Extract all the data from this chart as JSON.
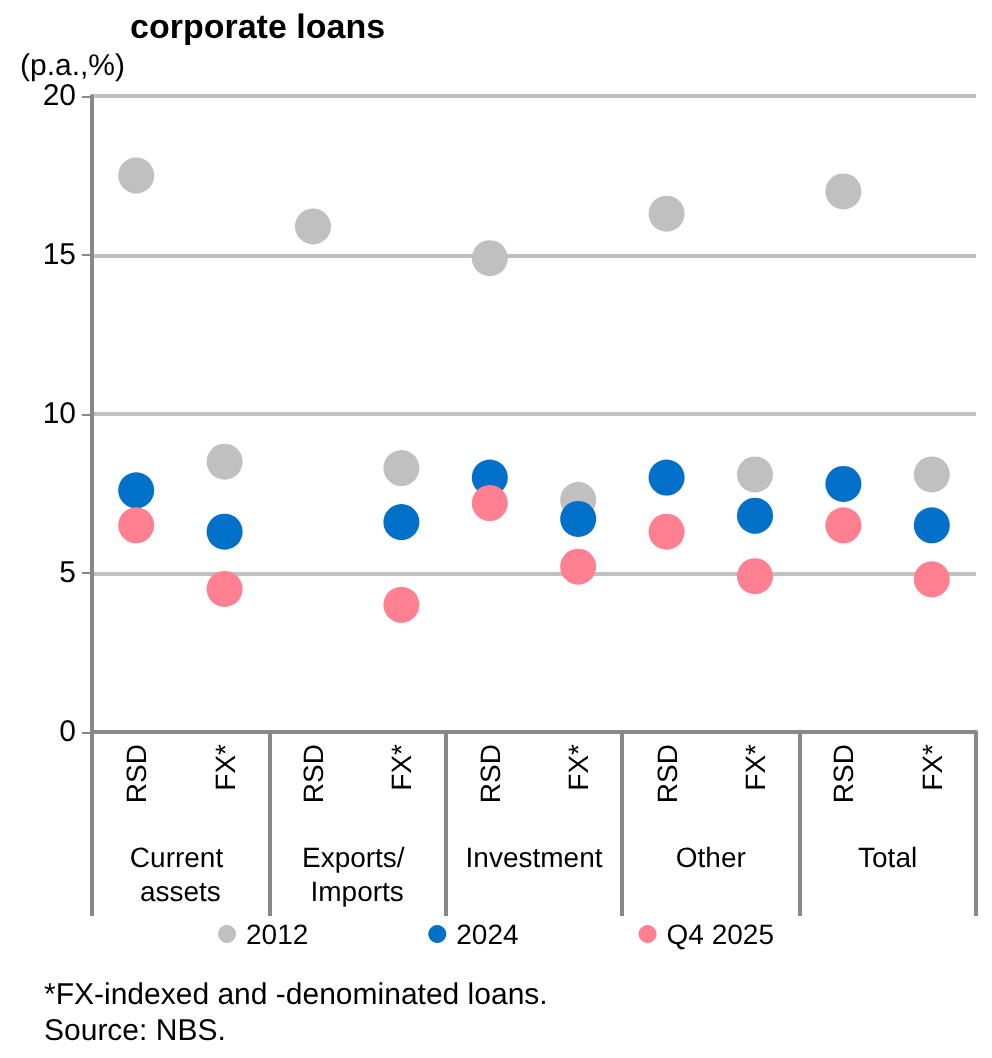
{
  "chart_data": {
    "type": "scatter",
    "title": "corporate loans",
    "ylabel": "(p.a.,%)",
    "categories": [
      "RSD",
      "FX*",
      "RSD",
      "FX*",
      "RSD",
      "FX*",
      "RSD",
      "FX*",
      "RSD",
      "FX*"
    ],
    "series": [
      {
        "name": "2012",
        "color": "#c0c0c0",
        "values": [
          17.5,
          8.5,
          15.9,
          8.3,
          14.9,
          7.3,
          16.3,
          8.1,
          17.0,
          8.1
        ]
      },
      {
        "name": "2024",
        "color": "#0070c8",
        "values": [
          7.6,
          6.3,
          null,
          6.6,
          8.0,
          6.7,
          8.0,
          6.8,
          7.8,
          6.5
        ]
      },
      {
        "name": "Q4 2025",
        "color": "#ff8090",
        "values": [
          6.5,
          4.5,
          null,
          4.0,
          7.2,
          5.2,
          6.3,
          4.9,
          6.5,
          4.8
        ]
      }
    ],
    "ylim": [
      0,
      20
    ],
    "yticks": [
      0,
      5,
      10,
      15,
      20
    ],
    "grid": "y",
    "legend": "bottom",
    "marker": "circle",
    "annotations": [
      "Current assets",
      "Exports/ Imports",
      "Investment",
      "Other",
      "Total",
      "*FX-indexed and -denominated loans.",
      "Source: NBS."
    ]
  }
}
